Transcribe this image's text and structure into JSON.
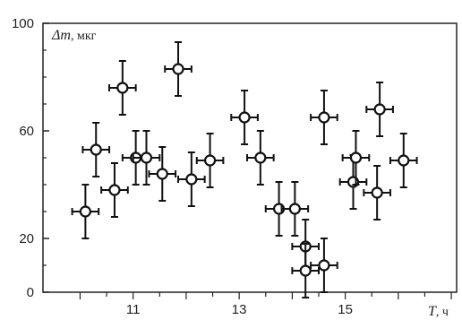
{
  "chart_data": {
    "type": "scatter",
    "title": "",
    "ylabel": "Δm, мкг",
    "xlabel": "T, ч",
    "xlim": [
      9.3,
      17.1
    ],
    "ylim": [
      0,
      100
    ],
    "x_ticks": [
      11,
      13,
      15
    ],
    "y_ticks": [
      0,
      20,
      60,
      100
    ],
    "y_tick_labels": [
      "0",
      "20",
      "60",
      "100"
    ],
    "x_tick_labels": [
      "11",
      "13",
      "15"
    ],
    "grid": false,
    "error_bars": true,
    "x_error": 0.25,
    "points": [
      {
        "x": 10.1,
        "y": 30,
        "yerr": 10
      },
      {
        "x": 10.3,
        "y": 53,
        "yerr": 10
      },
      {
        "x": 10.65,
        "y": 38,
        "yerr": 10
      },
      {
        "x": 10.8,
        "y": 76,
        "yerr": 10
      },
      {
        "x": 11.05,
        "y": 50,
        "yerr": 10
      },
      {
        "x": 11.25,
        "y": 50,
        "yerr": 10
      },
      {
        "x": 11.55,
        "y": 44,
        "yerr": 10
      },
      {
        "x": 11.85,
        "y": 83,
        "yerr": 10
      },
      {
        "x": 12.1,
        "y": 42,
        "yerr": 10
      },
      {
        "x": 12.45,
        "y": 49,
        "yerr": 10
      },
      {
        "x": 13.1,
        "y": 65,
        "yerr": 10
      },
      {
        "x": 13.4,
        "y": 50,
        "yerr": 10
      },
      {
        "x": 13.75,
        "y": 31,
        "yerr": 10
      },
      {
        "x": 14.05,
        "y": 31,
        "yerr": 10
      },
      {
        "x": 14.25,
        "y": 17,
        "yerr": 10
      },
      {
        "x": 14.25,
        "y": 8,
        "yerr": 10
      },
      {
        "x": 14.6,
        "y": 65,
        "yerr": 10
      },
      {
        "x": 14.6,
        "y": 10,
        "yerr": 10
      },
      {
        "x": 15.15,
        "y": 41,
        "yerr": 10
      },
      {
        "x": 15.2,
        "y": 50,
        "yerr": 10
      },
      {
        "x": 15.6,
        "y": 37,
        "yerr": 10
      },
      {
        "x": 15.65,
        "y": 68,
        "yerr": 10
      },
      {
        "x": 16.1,
        "y": 49,
        "yerr": 10
      }
    ]
  }
}
